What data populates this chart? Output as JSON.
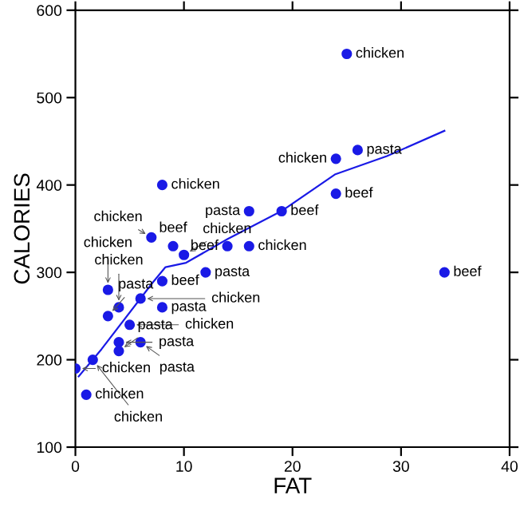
{
  "chart_data": {
    "type": "scatter",
    "xlabel": "FAT",
    "ylabel": "CALORIES",
    "xlim": [
      0,
      40
    ],
    "ylim": [
      100,
      600
    ],
    "xticks": [
      0,
      10,
      20,
      30,
      40
    ],
    "yticks": [
      100,
      200,
      300,
      400,
      500,
      600
    ],
    "grid": false,
    "legend": false,
    "marker": "circle",
    "series": [
      {
        "color": "#1a1ae6",
        "x": [
          25,
          26,
          24,
          24,
          34,
          8,
          16,
          19,
          7,
          9,
          10,
          14,
          16,
          12,
          8,
          3,
          6,
          4,
          8,
          3,
          5,
          4,
          6,
          4,
          1.6,
          0,
          1
        ],
        "values": [
          550,
          440,
          430,
          390,
          300,
          400,
          370,
          370,
          340,
          330,
          320,
          330,
          330,
          300,
          290,
          280,
          270,
          260,
          260,
          250,
          240,
          220,
          220,
          210,
          200,
          190,
          160
        ]
      },
      {
        "type": "line",
        "marker": "none",
        "color": "#1a1ae6",
        "x": [
          0.3,
          2.4,
          7.1,
          8.3,
          10.2,
          14,
          19.1,
          23.9,
          28.7,
          34
        ],
        "values": [
          181,
          212,
          288,
          306,
          311,
          338,
          371,
          412,
          433,
          462
        ]
      }
    ],
    "annotations": [
      {
        "text": "chicken",
        "x": 25,
        "y": 550
      },
      {
        "text": "pasta",
        "x": 26,
        "y": 440
      },
      {
        "text": "chicken",
        "x": 24,
        "y": 430
      },
      {
        "text": "beef",
        "x": 24,
        "y": 390
      },
      {
        "text": "beef",
        "x": 34,
        "y": 300
      },
      {
        "text": "chicken",
        "x": 8,
        "y": 400
      },
      {
        "text": "pasta",
        "x": 16,
        "y": 370
      },
      {
        "text": "beef",
        "x": 19,
        "y": 370
      },
      {
        "text": "chicken",
        "x": 7,
        "y": 340
      },
      {
        "text": "beef",
        "x": 9,
        "y": 330
      },
      {
        "text": "chicken",
        "x": 10,
        "y": 320
      },
      {
        "text": "beef",
        "x": 14,
        "y": 330
      },
      {
        "text": "chicken",
        "x": 16,
        "y": 330
      },
      {
        "text": "pasta",
        "x": 12,
        "y": 300
      },
      {
        "text": "beef",
        "x": 8,
        "y": 290
      },
      {
        "text": "chicken",
        "x": 3,
        "y": 280
      },
      {
        "text": "chicken",
        "x": 6,
        "y": 270
      },
      {
        "text": "chicken",
        "x": 4,
        "y": 260
      },
      {
        "text": "pasta",
        "x": 8,
        "y": 260
      },
      {
        "text": "pasta",
        "x": 3,
        "y": 250
      },
      {
        "text": "chicken",
        "x": 5,
        "y": 240
      },
      {
        "text": "pasta",
        "x": 4,
        "y": 220
      },
      {
        "text": "pasta",
        "x": 6,
        "y": 220
      },
      {
        "text": "pasta",
        "x": 4,
        "y": 210
      },
      {
        "text": "chicken",
        "x": 1.6,
        "y": 200
      },
      {
        "text": "chicken",
        "x": 0,
        "y": 190
      },
      {
        "text": "chicken",
        "x": 1,
        "y": 160
      }
    ]
  }
}
